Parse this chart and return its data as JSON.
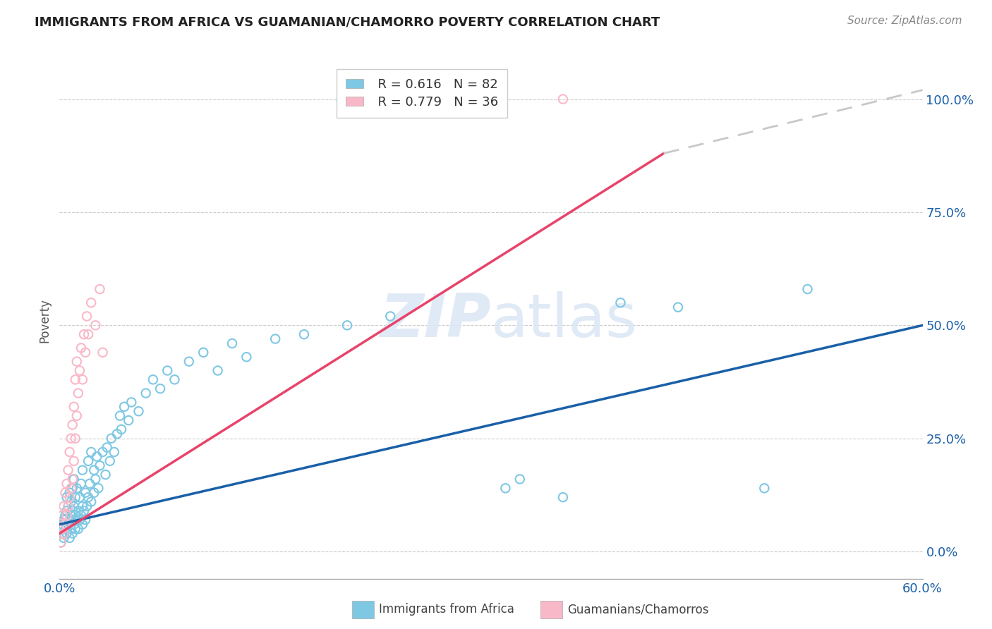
{
  "title": "IMMIGRANTS FROM AFRICA VS GUAMANIAN/CHAMORRO POVERTY CORRELATION CHART",
  "source": "Source: ZipAtlas.com",
  "ylabel": "Poverty",
  "ytick_labels": [
    "0.0%",
    "25.0%",
    "50.0%",
    "75.0%",
    "100.0%"
  ],
  "ytick_values": [
    0.0,
    0.25,
    0.5,
    0.75,
    1.0
  ],
  "xlim": [
    0.0,
    0.6
  ],
  "ylim": [
    -0.06,
    1.08
  ],
  "color_blue": "#7ec8e3",
  "color_pink": "#f9b8c8",
  "line_blue": "#1a5fa8",
  "line_pink": "#e8436a",
  "line_dashed": "#c8c8c8",
  "legend_label1": "Immigrants from Africa",
  "legend_label2": "Guamanians/Chamorros",
  "trendline_africa": [
    0.0,
    0.06,
    0.6,
    0.5
  ],
  "trendline_guam_solid": [
    0.0,
    0.04,
    0.42,
    0.88
  ],
  "trendline_dashed": [
    0.42,
    0.88,
    0.6,
    1.02
  ],
  "scatter_africa": [
    [
      0.001,
      0.02
    ],
    [
      0.002,
      0.04
    ],
    [
      0.002,
      0.06
    ],
    [
      0.003,
      0.03
    ],
    [
      0.003,
      0.07
    ],
    [
      0.004,
      0.05
    ],
    [
      0.004,
      0.08
    ],
    [
      0.005,
      0.04
    ],
    [
      0.005,
      0.09
    ],
    [
      0.005,
      0.12
    ],
    [
      0.006,
      0.06
    ],
    [
      0.006,
      0.1
    ],
    [
      0.007,
      0.03
    ],
    [
      0.007,
      0.07
    ],
    [
      0.007,
      0.13
    ],
    [
      0.008,
      0.05
    ],
    [
      0.008,
      0.08
    ],
    [
      0.008,
      0.11
    ],
    [
      0.009,
      0.04
    ],
    [
      0.009,
      0.09
    ],
    [
      0.009,
      0.14
    ],
    [
      0.01,
      0.06
    ],
    [
      0.01,
      0.1
    ],
    [
      0.01,
      0.16
    ],
    [
      0.011,
      0.05
    ],
    [
      0.011,
      0.08
    ],
    [
      0.011,
      0.12
    ],
    [
      0.012,
      0.07
    ],
    [
      0.012,
      0.14
    ],
    [
      0.013,
      0.05
    ],
    [
      0.013,
      0.09
    ],
    [
      0.014,
      0.07
    ],
    [
      0.014,
      0.12
    ],
    [
      0.015,
      0.08
    ],
    [
      0.015,
      0.15
    ],
    [
      0.016,
      0.06
    ],
    [
      0.016,
      0.1
    ],
    [
      0.016,
      0.18
    ],
    [
      0.017,
      0.09
    ],
    [
      0.018,
      0.07
    ],
    [
      0.018,
      0.13
    ],
    [
      0.019,
      0.1
    ],
    [
      0.02,
      0.12
    ],
    [
      0.02,
      0.2
    ],
    [
      0.021,
      0.15
    ],
    [
      0.022,
      0.11
    ],
    [
      0.022,
      0.22
    ],
    [
      0.024,
      0.13
    ],
    [
      0.024,
      0.18
    ],
    [
      0.025,
      0.16
    ],
    [
      0.026,
      0.21
    ],
    [
      0.027,
      0.14
    ],
    [
      0.028,
      0.19
    ],
    [
      0.03,
      0.22
    ],
    [
      0.032,
      0.17
    ],
    [
      0.033,
      0.23
    ],
    [
      0.035,
      0.2
    ],
    [
      0.036,
      0.25
    ],
    [
      0.038,
      0.22
    ],
    [
      0.04,
      0.26
    ],
    [
      0.042,
      0.3
    ],
    [
      0.043,
      0.27
    ],
    [
      0.045,
      0.32
    ],
    [
      0.048,
      0.29
    ],
    [
      0.05,
      0.33
    ],
    [
      0.055,
      0.31
    ],
    [
      0.06,
      0.35
    ],
    [
      0.065,
      0.38
    ],
    [
      0.07,
      0.36
    ],
    [
      0.075,
      0.4
    ],
    [
      0.08,
      0.38
    ],
    [
      0.09,
      0.42
    ],
    [
      0.1,
      0.44
    ],
    [
      0.11,
      0.4
    ],
    [
      0.12,
      0.46
    ],
    [
      0.13,
      0.43
    ],
    [
      0.15,
      0.47
    ],
    [
      0.17,
      0.48
    ],
    [
      0.2,
      0.5
    ],
    [
      0.23,
      0.52
    ],
    [
      0.31,
      0.14
    ],
    [
      0.32,
      0.16
    ],
    [
      0.35,
      0.12
    ],
    [
      0.39,
      0.55
    ],
    [
      0.43,
      0.54
    ],
    [
      0.49,
      0.14
    ],
    [
      0.52,
      0.58
    ]
  ],
  "scatter_guam": [
    [
      0.001,
      0.02
    ],
    [
      0.002,
      0.05
    ],
    [
      0.002,
      0.08
    ],
    [
      0.003,
      0.04
    ],
    [
      0.003,
      0.1
    ],
    [
      0.004,
      0.06
    ],
    [
      0.004,
      0.13
    ],
    [
      0.005,
      0.08
    ],
    [
      0.005,
      0.15
    ],
    [
      0.006,
      0.1
    ],
    [
      0.006,
      0.18
    ],
    [
      0.007,
      0.12
    ],
    [
      0.007,
      0.22
    ],
    [
      0.008,
      0.14
    ],
    [
      0.008,
      0.25
    ],
    [
      0.009,
      0.16
    ],
    [
      0.009,
      0.28
    ],
    [
      0.01,
      0.2
    ],
    [
      0.01,
      0.32
    ],
    [
      0.011,
      0.25
    ],
    [
      0.011,
      0.38
    ],
    [
      0.012,
      0.3
    ],
    [
      0.012,
      0.42
    ],
    [
      0.013,
      0.35
    ],
    [
      0.014,
      0.4
    ],
    [
      0.015,
      0.45
    ],
    [
      0.016,
      0.38
    ],
    [
      0.017,
      0.48
    ],
    [
      0.018,
      0.44
    ],
    [
      0.019,
      0.52
    ],
    [
      0.02,
      0.48
    ],
    [
      0.022,
      0.55
    ],
    [
      0.025,
      0.5
    ],
    [
      0.028,
      0.58
    ],
    [
      0.03,
      0.44
    ],
    [
      0.35,
      1.0
    ]
  ]
}
